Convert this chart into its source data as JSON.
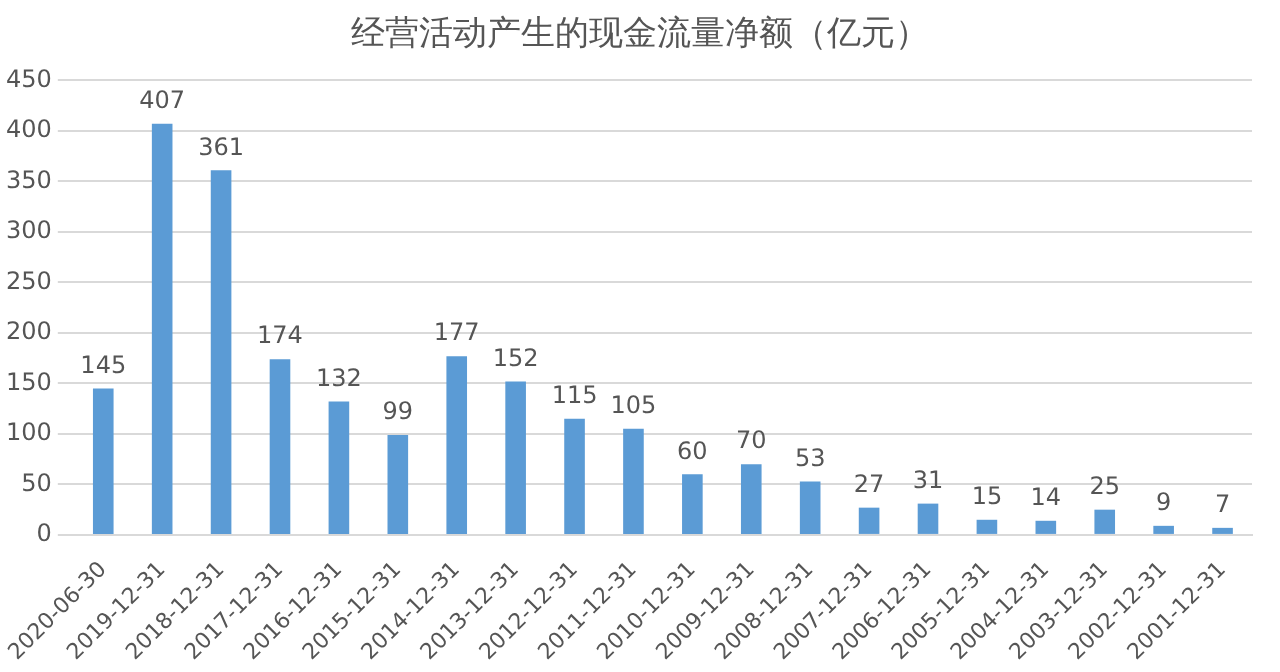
{
  "chart_data": {
    "type": "bar",
    "title": "经营活动产生的现金流量净额（亿元）",
    "categories": [
      "2020-06-30",
      "2019-12-31",
      "2018-12-31",
      "2017-12-31",
      "2016-12-31",
      "2015-12-31",
      "2014-12-31",
      "2013-12-31",
      "2012-12-31",
      "2011-12-31",
      "2010-12-31",
      "2009-12-31",
      "2008-12-31",
      "2007-12-31",
      "2006-12-31",
      "2005-12-31",
      "2004-12-31",
      "2003-12-31",
      "2002-12-31",
      "2001-12-31"
    ],
    "values": [
      145,
      407,
      361,
      174,
      132,
      99,
      177,
      152,
      115,
      105,
      60,
      70,
      53,
      27,
      31,
      15,
      14,
      25,
      9,
      7
    ],
    "color": "#5b9bd5",
    "ylim": [
      0,
      450
    ],
    "yticks": [
      0,
      50,
      100,
      150,
      200,
      250,
      300,
      350,
      400,
      450
    ],
    "grid": "y",
    "data_labels": true
  }
}
